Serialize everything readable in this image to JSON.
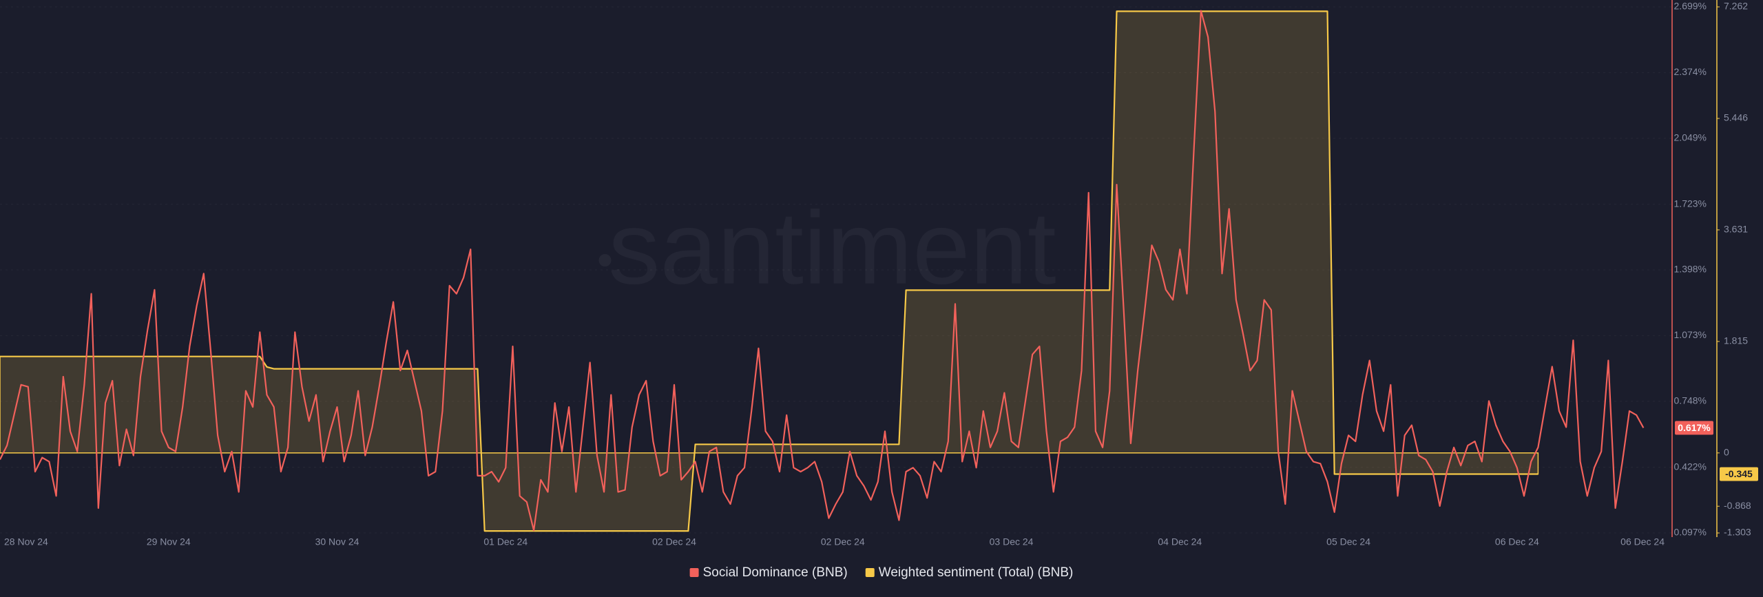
{
  "chart_data": {
    "type": "line",
    "watermark": "santiment",
    "grid": true,
    "categories": [
      "28 Nov 24",
      null,
      null,
      null,
      null,
      null,
      null,
      null,
      null,
      null,
      null,
      null,
      null,
      null,
      null,
      null,
      null,
      null,
      null,
      null,
      null,
      null,
      null,
      null,
      "29 Nov 24",
      null,
      null,
      null,
      null,
      null,
      null,
      null,
      null,
      null,
      null,
      null,
      null,
      null,
      null,
      null,
      null,
      null,
      null,
      null,
      null,
      null,
      null,
      null,
      "30 Nov 24",
      null,
      null,
      null,
      null,
      null,
      null,
      null,
      null,
      null,
      null,
      null,
      null,
      null,
      null,
      null,
      null,
      null,
      null,
      null,
      null,
      null,
      null,
      null,
      "01 Dec 24",
      null,
      null,
      null,
      null,
      null,
      null,
      null,
      null,
      null,
      null,
      null,
      null,
      null,
      null,
      null,
      null,
      null,
      null,
      null,
      null,
      null,
      null,
      null,
      "02 Dec 24",
      null,
      null,
      null,
      null,
      null,
      null,
      null,
      null,
      null,
      null,
      null,
      null,
      null,
      null,
      null,
      null,
      null,
      null,
      null,
      null,
      null,
      null,
      null,
      "02 Dec 24",
      null,
      null,
      null,
      null,
      null,
      null,
      null,
      null,
      null,
      null,
      null,
      null,
      null,
      null,
      null,
      null,
      null,
      null,
      null,
      null,
      null,
      null,
      null,
      "03 Dec 24",
      null,
      null,
      null,
      null,
      null,
      null,
      null,
      null,
      null,
      null,
      null,
      null,
      null,
      null,
      null,
      null,
      null,
      null,
      null,
      null,
      null,
      null,
      null,
      "04 Dec 24",
      null,
      null,
      null,
      null,
      null,
      null,
      null,
      null,
      null,
      null,
      null,
      null,
      null,
      null,
      null,
      null,
      null,
      null,
      null,
      null,
      null,
      null,
      null,
      "05 Dec 24",
      null,
      null,
      null,
      null,
      null,
      null,
      null,
      null,
      null,
      null,
      null,
      null,
      null,
      null,
      null,
      null,
      null,
      null,
      null,
      null,
      null,
      null,
      null,
      "06 Dec 24",
      null,
      null,
      null,
      null,
      null,
      null,
      null,
      null,
      null,
      null,
      null,
      null,
      null,
      null,
      null,
      null,
      null,
      null,
      null,
      null,
      "06 Dec 24"
    ],
    "series": [
      {
        "name": "Social Dominance (BNB)",
        "color": "#f2615b",
        "axis": "y",
        "last_value_label": "0.617%",
        "values": [
          0.46,
          0.53,
          0.68,
          0.83,
          0.82,
          0.4,
          0.47,
          0.45,
          0.28,
          0.87,
          0.6,
          0.5,
          0.83,
          1.28,
          0.22,
          0.74,
          0.85,
          0.43,
          0.61,
          0.48,
          0.87,
          1.1,
          1.3,
          0.6,
          0.52,
          0.5,
          0.72,
          1.02,
          1.22,
          1.38,
          1.0,
          0.58,
          0.4,
          0.5,
          0.3,
          0.8,
          0.72,
          1.09,
          0.78,
          0.72,
          0.4,
          0.52,
          1.09,
          0.82,
          0.65,
          0.78,
          0.45,
          0.6,
          0.72,
          0.45,
          0.58,
          0.8,
          0.48,
          0.62,
          0.82,
          1.04,
          1.24,
          0.9,
          1.0,
          0.85,
          0.7,
          0.38,
          0.4,
          0.7,
          1.32,
          1.28,
          1.36,
          1.5,
          0.38,
          0.38,
          0.4,
          0.35,
          0.42,
          1.02,
          0.28,
          0.25,
          0.11,
          0.36,
          0.3,
          0.74,
          0.5,
          0.72,
          0.3,
          0.62,
          0.94,
          0.48,
          0.3,
          0.78,
          0.3,
          0.31,
          0.62,
          0.78,
          0.85,
          0.55,
          0.38,
          0.4,
          0.83,
          0.36,
          0.4,
          0.45,
          0.3,
          0.5,
          0.52,
          0.3,
          0.24,
          0.38,
          0.42,
          0.7,
          1.01,
          0.6,
          0.55,
          0.4,
          0.68,
          0.42,
          0.4,
          0.42,
          0.45,
          0.35,
          0.17,
          0.24,
          0.3,
          0.5,
          0.38,
          0.33,
          0.26,
          0.35,
          0.6,
          0.3,
          0.16,
          0.4,
          0.42,
          0.38,
          0.27,
          0.45,
          0.4,
          0.55,
          1.23,
          0.45,
          0.6,
          0.42,
          0.7,
          0.52,
          0.6,
          0.79,
          0.55,
          0.52,
          0.75,
          0.98,
          1.02,
          0.6,
          0.3,
          0.55,
          0.57,
          0.62,
          0.9,
          1.78,
          0.6,
          0.52,
          0.8,
          1.82,
          1.2,
          0.54,
          0.9,
          1.2,
          1.52,
          1.44,
          1.3,
          1.25,
          1.5,
          1.28,
          2.0,
          2.68,
          2.55,
          2.18,
          1.38,
          1.7,
          1.25,
          1.08,
          0.9,
          0.95,
          1.25,
          1.2,
          0.5,
          0.24,
          0.8,
          0.65,
          0.5,
          0.45,
          0.44,
          0.35,
          0.2,
          0.44,
          0.58,
          0.55,
          0.78,
          0.95,
          0.7,
          0.6,
          0.83,
          0.28,
          0.58,
          0.63,
          0.48,
          0.46,
          0.4,
          0.23,
          0.4,
          0.52,
          0.43,
          0.53,
          0.55,
          0.45,
          0.75,
          0.63,
          0.55,
          0.5,
          0.42,
          0.28,
          0.45,
          0.52,
          0.72,
          0.92,
          0.7,
          0.62,
          1.05,
          0.45,
          0.28,
          0.42,
          0.5,
          0.95,
          0.22,
          0.45,
          0.7,
          0.68,
          0.617,
          null,
          null,
          null
        ]
      },
      {
        "name": "Weighted sentiment (Total) (BNB)",
        "color": "#f7c948",
        "axis": "y2",
        "fill": true,
        "last_value_label": "-0.345",
        "values": [
          1.57,
          1.57,
          1.57,
          1.57,
          1.57,
          1.57,
          1.57,
          1.57,
          1.57,
          1.57,
          1.57,
          1.57,
          1.57,
          1.57,
          1.57,
          1.57,
          1.57,
          1.57,
          1.57,
          1.57,
          1.57,
          1.57,
          1.57,
          1.57,
          1.57,
          1.57,
          1.57,
          1.57,
          1.57,
          1.57,
          1.57,
          1.57,
          1.57,
          1.57,
          1.57,
          1.57,
          1.57,
          1.57,
          1.4,
          1.37,
          1.37,
          1.37,
          1.37,
          1.37,
          1.37,
          1.37,
          1.37,
          1.37,
          1.37,
          1.37,
          1.37,
          1.37,
          1.37,
          1.37,
          1.37,
          1.37,
          1.37,
          1.37,
          1.37,
          1.37,
          1.37,
          1.37,
          1.37,
          1.37,
          1.37,
          1.37,
          1.37,
          1.37,
          1.37,
          -1.27,
          -1.27,
          -1.27,
          -1.27,
          -1.27,
          -1.27,
          -1.27,
          -1.27,
          -1.27,
          -1.27,
          -1.27,
          -1.27,
          -1.27,
          -1.27,
          -1.27,
          -1.27,
          -1.27,
          -1.27,
          -1.27,
          -1.27,
          -1.27,
          -1.27,
          -1.27,
          -1.27,
          -1.27,
          -1.27,
          -1.27,
          -1.27,
          -1.27,
          -1.27,
          0.14,
          0.14,
          0.14,
          0.14,
          0.14,
          0.14,
          0.14,
          0.14,
          0.14,
          0.14,
          0.14,
          0.14,
          0.14,
          0.14,
          0.14,
          0.14,
          0.14,
          0.14,
          0.14,
          0.14,
          0.14,
          0.14,
          0.14,
          0.14,
          0.14,
          0.14,
          0.14,
          0.14,
          0.14,
          0.14,
          2.65,
          2.65,
          2.65,
          2.65,
          2.65,
          2.65,
          2.65,
          2.65,
          2.65,
          2.65,
          2.65,
          2.65,
          2.65,
          2.65,
          2.65,
          2.65,
          2.65,
          2.65,
          2.65,
          2.65,
          2.65,
          2.65,
          2.65,
          2.65,
          2.65,
          2.65,
          2.65,
          2.65,
          2.65,
          2.65,
          7.19,
          7.19,
          7.19,
          7.19,
          7.19,
          7.19,
          7.19,
          7.19,
          7.19,
          7.19,
          7.19,
          7.19,
          7.19,
          7.19,
          7.19,
          7.19,
          7.19,
          7.19,
          7.19,
          7.19,
          7.19,
          7.19,
          7.19,
          7.19,
          7.19,
          7.19,
          7.19,
          7.19,
          7.19,
          7.19,
          7.19,
          -0.345,
          -0.345,
          -0.345,
          -0.345,
          -0.345,
          -0.345,
          -0.345,
          -0.345,
          -0.345,
          -0.345,
          -0.345,
          -0.345,
          -0.345,
          -0.345,
          -0.345,
          -0.345,
          -0.345,
          -0.345,
          -0.345,
          -0.345,
          -0.345,
          -0.345,
          -0.345,
          -0.345,
          -0.345,
          -0.345,
          -0.345,
          -0.345,
          -0.345,
          -0.345,
          null,
          null,
          null,
          null,
          null,
          null,
          null,
          null,
          null,
          null,
          null,
          null,
          null,
          null,
          null,
          null,
          null,
          null
        ]
      }
    ],
    "ylim": [
      0.097,
      2.699
    ],
    "yticks": [
      {
        "value": 2.699,
        "label": "2.699%"
      },
      {
        "value": 2.374,
        "label": "2.374%"
      },
      {
        "value": 2.049,
        "label": "2.049%"
      },
      {
        "value": 1.723,
        "label": "1.723%"
      },
      {
        "value": 1.398,
        "label": "1.398%"
      },
      {
        "value": 1.073,
        "label": "1.073%"
      },
      {
        "value": 0.748,
        "label": "0.748%"
      },
      {
        "value": 0.422,
        "label": "0.422%"
      },
      {
        "value": 0.097,
        "label": "0.097%"
      }
    ],
    "y2lim": [
      -1.303,
      7.262
    ],
    "y2ticks": [
      7.262,
      5.446,
      3.631,
      1.815,
      0,
      -0.868,
      -1.303
    ]
  }
}
